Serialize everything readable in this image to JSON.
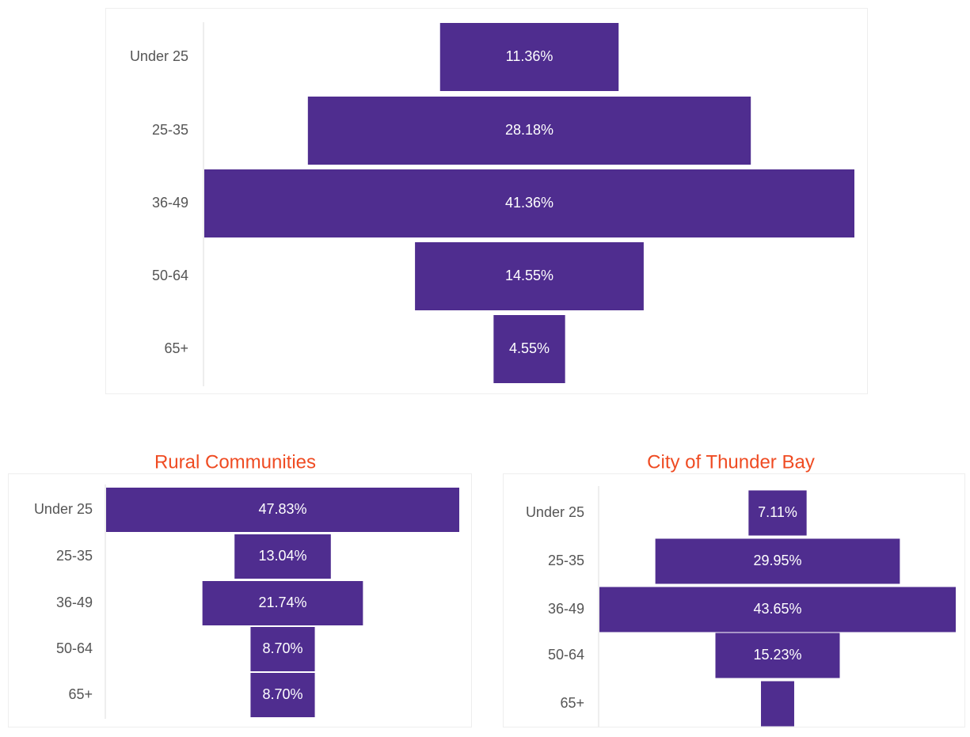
{
  "chart_data": [
    {
      "type": "funnel",
      "color": "#4f2d8f",
      "categories": [
        "Under 25",
        "25-35",
        "36-49",
        "50-64",
        "65+"
      ],
      "values": [
        11.36,
        28.18,
        41.36,
        14.55,
        4.55
      ],
      "value_labels": [
        "11.36%",
        "28.18%",
        "41.36%",
        "14.55%",
        "4.55%"
      ]
    },
    {
      "type": "funnel",
      "title": "Rural Communities",
      "color": "#4f2d8f",
      "categories": [
        "Under 25",
        "25-35",
        "36-49",
        "50-64",
        "65+"
      ],
      "values": [
        47.83,
        13.04,
        21.74,
        8.7,
        8.7
      ],
      "value_labels": [
        "47.83%",
        "13.04%",
        "21.74%",
        "8.70%",
        "8.70%"
      ]
    },
    {
      "type": "funnel",
      "title": "City of Thunder Bay",
      "color": "#4f2d8f",
      "categories": [
        "Under 25",
        "25-35",
        "36-49",
        "50-64",
        "65+"
      ],
      "values": [
        7.11,
        29.95,
        43.65,
        15.23,
        4.07
      ],
      "value_labels": [
        "7.11%",
        "29.95%",
        "43.65%",
        "15.23%",
        null
      ]
    }
  ]
}
